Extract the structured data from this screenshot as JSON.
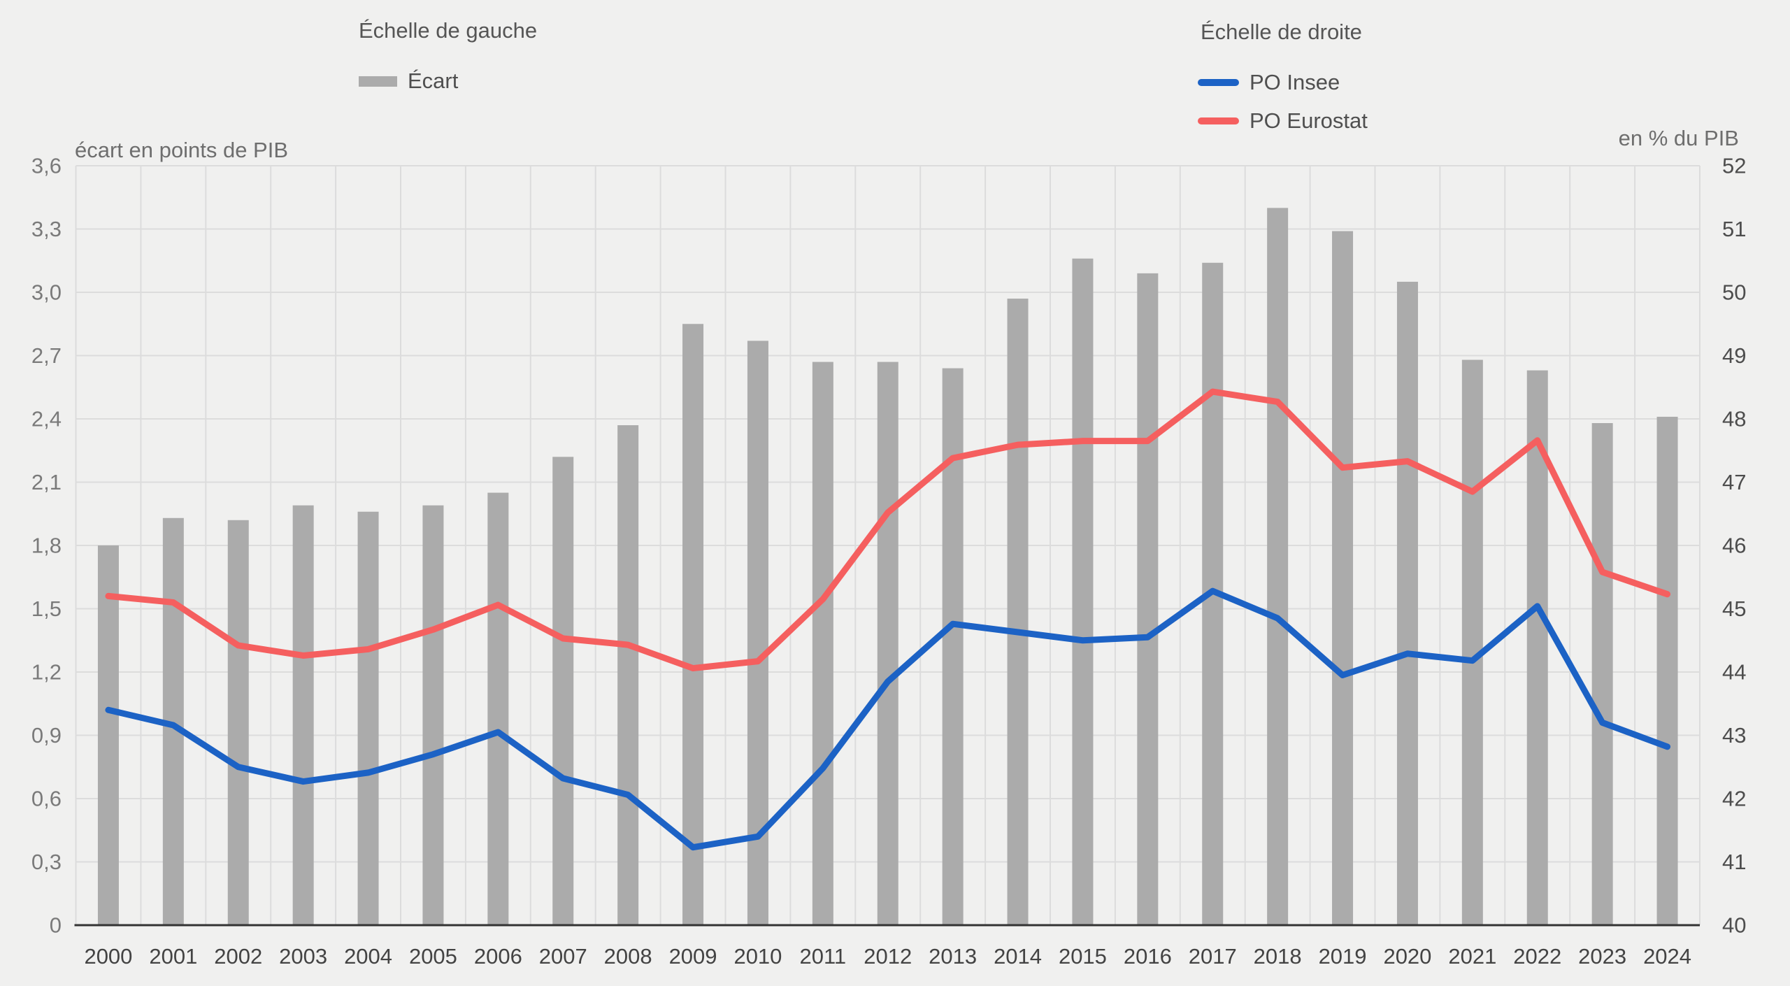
{
  "legends": {
    "left": {
      "title": "Échelle de gauche",
      "items": [
        {
          "label": "Écart",
          "type": "bar",
          "color": "#ababab"
        }
      ]
    },
    "right": {
      "title": "Échelle de droite",
      "items": [
        {
          "label": "PO Insee",
          "type": "line",
          "color": "#1c62c5"
        },
        {
          "label": "PO Eurostat",
          "type": "line",
          "color": "#f55f5f"
        }
      ]
    }
  },
  "axes": {
    "left_unit": "écart en points de PIB",
    "right_unit": "en % du PIB"
  },
  "chart_data": {
    "type": "bar",
    "subtype": "bar+line dual axis",
    "categories": [
      "2000",
      "2001",
      "2002",
      "2003",
      "2004",
      "2005",
      "2006",
      "2007",
      "2008",
      "2009",
      "2010",
      "2011",
      "2012",
      "2013",
      "2014",
      "2015",
      "2016",
      "2017",
      "2018",
      "2019",
      "2020",
      "2021",
      "2022",
      "2023",
      "2024"
    ],
    "series": [
      {
        "name": "Écart",
        "type": "bar",
        "axis": "left",
        "color": "#ababab",
        "values": [
          1.8,
          1.93,
          1.92,
          1.99,
          1.96,
          1.99,
          2.05,
          2.22,
          2.37,
          2.85,
          2.77,
          2.67,
          2.67,
          2.64,
          2.97,
          3.16,
          3.09,
          3.14,
          3.4,
          3.29,
          3.05,
          2.68,
          2.63,
          2.38,
          2.41
        ]
      },
      {
        "name": "PO Insee",
        "type": "line",
        "axis": "right",
        "color": "#1c62c5",
        "values": [
          43.4,
          43.16,
          42.5,
          42.27,
          42.41,
          42.7,
          43.05,
          42.32,
          42.06,
          41.23,
          41.4,
          42.48,
          43.85,
          44.76,
          44.63,
          44.5,
          44.55,
          45.28,
          44.85,
          43.95,
          44.29,
          44.18,
          45.04,
          43.2,
          42.82
        ]
      },
      {
        "name": "PO Eurostat",
        "type": "line",
        "axis": "right",
        "color": "#f55f5f",
        "values": [
          45.2,
          45.1,
          44.42,
          44.26,
          44.36,
          44.67,
          45.06,
          44.53,
          44.43,
          44.06,
          44.17,
          45.15,
          46.52,
          47.38,
          47.59,
          47.65,
          47.65,
          48.43,
          48.27,
          47.23,
          47.33,
          46.85,
          47.66,
          45.58,
          45.23
        ]
      }
    ],
    "left_axis": {
      "label": "écart en points de PIB",
      "min": 0,
      "max": 3.6,
      "step": 0.3,
      "tick_labels": [
        "0",
        "0,3",
        "0,6",
        "0,9",
        "1,2",
        "1,5",
        "1,8",
        "2,1",
        "2,4",
        "2,7",
        "3,0",
        "3,3",
        "3,6"
      ]
    },
    "right_axis": {
      "label": "en % du PIB",
      "min": 40,
      "max": 52,
      "step": 1,
      "tick_labels": [
        "40",
        "41",
        "42",
        "43",
        "44",
        "45",
        "46",
        "47",
        "48",
        "49",
        "50",
        "51",
        "52"
      ]
    },
    "grid": true,
    "legend_position": "top",
    "colors": {
      "background": "#f0f0ef",
      "gridline": "#dcdcdc",
      "baseline": "#333333",
      "tick_text_left": "#7a7a7a",
      "tick_text_right": "#4d4d4d",
      "tick_text_x": "#434343"
    }
  }
}
